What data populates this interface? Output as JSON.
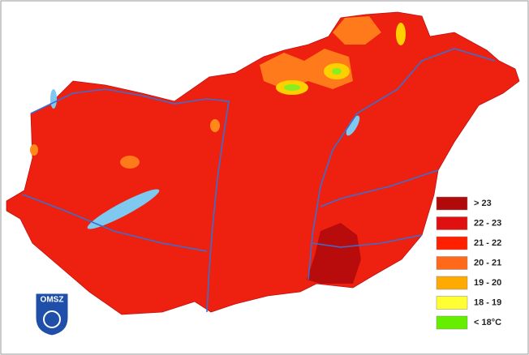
{
  "logo": {
    "text": "OMSZ"
  },
  "legend": {
    "items": [
      {
        "label": "> 23",
        "color": "#b00a0a"
      },
      {
        "label": "22 - 23",
        "color": "#e01010"
      },
      {
        "label": "21 - 22",
        "color": "#ff2000"
      },
      {
        "label": "20 - 21",
        "color": "#ff6a1a"
      },
      {
        "label": "19 - 20",
        "color": "#ffaa00"
      },
      {
        "label": "18 - 19",
        "color": "#ffff33"
      },
      {
        "label": "< 18°C",
        "color": "#66ee00"
      }
    ]
  }
}
